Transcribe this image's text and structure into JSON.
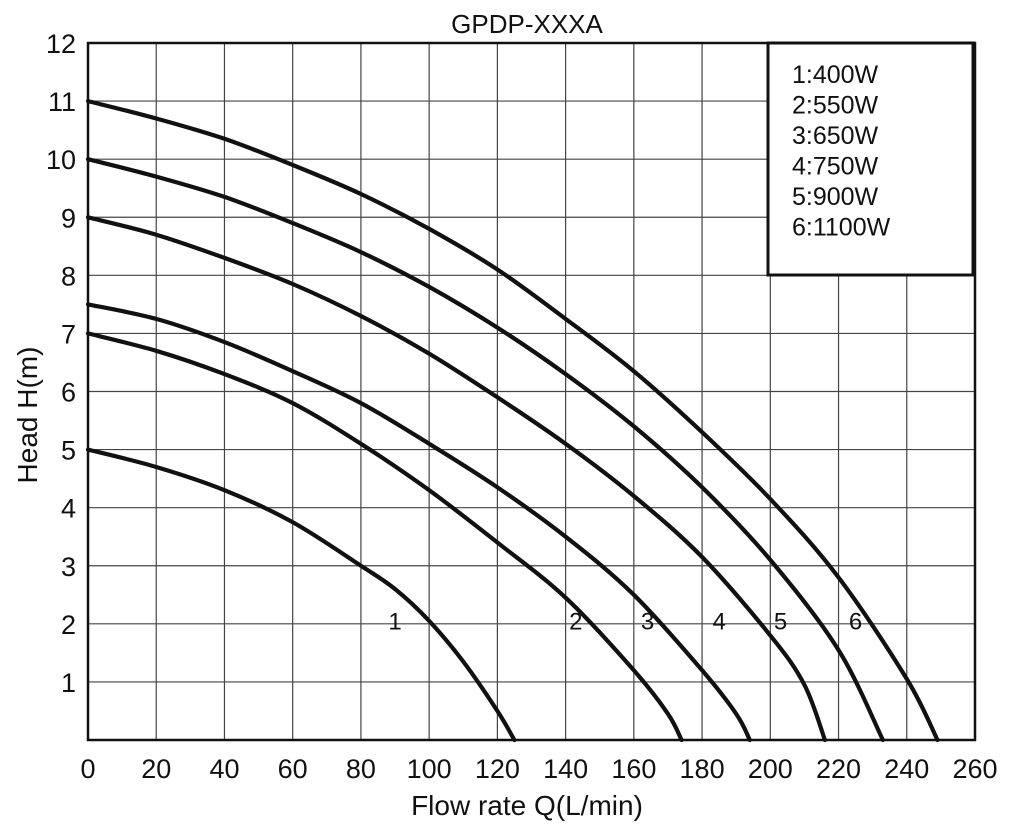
{
  "chart_data": {
    "type": "line",
    "title": "GPDP-XXXA",
    "xlabel": "Flow rate Q(L/min)",
    "ylabel": "Head H(m)",
    "xlim": [
      0,
      260
    ],
    "ylim": [
      0,
      12
    ],
    "x_ticks": [
      0,
      20,
      40,
      60,
      80,
      100,
      120,
      140,
      160,
      180,
      200,
      220,
      240,
      260
    ],
    "y_ticks": [
      1,
      2,
      3,
      4,
      5,
      6,
      7,
      8,
      9,
      10,
      11,
      12
    ],
    "grid": true,
    "legend_position": "top-right",
    "legend": [
      "1:400W",
      "2:550W",
      "3:650W",
      "4:750W",
      "5:900W",
      "6:1100W"
    ],
    "series": [
      {
        "label": "1",
        "x": [
          0,
          20,
          40,
          60,
          80,
          90,
          100,
          110,
          120,
          125
        ],
        "y": [
          5.0,
          4.7,
          4.3,
          3.75,
          3.0,
          2.6,
          2.05,
          1.35,
          0.5,
          0.0
        ]
      },
      {
        "label": "2",
        "x": [
          0,
          20,
          40,
          60,
          80,
          100,
          120,
          140,
          160,
          170,
          174
        ],
        "y": [
          7.0,
          6.7,
          6.3,
          5.8,
          5.1,
          4.3,
          3.4,
          2.45,
          1.2,
          0.45,
          0.0
        ]
      },
      {
        "label": "3",
        "x": [
          0,
          20,
          40,
          60,
          80,
          100,
          120,
          140,
          160,
          180,
          190,
          194
        ],
        "y": [
          7.5,
          7.25,
          6.85,
          6.35,
          5.8,
          5.1,
          4.35,
          3.5,
          2.5,
          1.2,
          0.45,
          0.0
        ]
      },
      {
        "label": "4",
        "x": [
          0,
          20,
          40,
          60,
          80,
          100,
          120,
          140,
          160,
          180,
          200,
          210,
          216
        ],
        "y": [
          9.0,
          8.7,
          8.3,
          7.85,
          7.3,
          6.65,
          5.9,
          5.1,
          4.2,
          3.15,
          1.8,
          0.95,
          0.0
        ]
      },
      {
        "label": "5",
        "x": [
          0,
          20,
          40,
          60,
          80,
          100,
          120,
          140,
          160,
          180,
          200,
          220,
          233
        ],
        "y": [
          10.0,
          9.7,
          9.35,
          8.9,
          8.4,
          7.8,
          7.1,
          6.3,
          5.4,
          4.35,
          3.1,
          1.55,
          0.0
        ]
      },
      {
        "label": "6",
        "x": [
          0,
          20,
          40,
          60,
          80,
          100,
          120,
          140,
          160,
          180,
          200,
          220,
          240,
          249
        ],
        "y": [
          11.0,
          10.7,
          10.35,
          9.9,
          9.4,
          8.8,
          8.1,
          7.25,
          6.35,
          5.3,
          4.15,
          2.8,
          1.05,
          0.0
        ]
      }
    ]
  }
}
